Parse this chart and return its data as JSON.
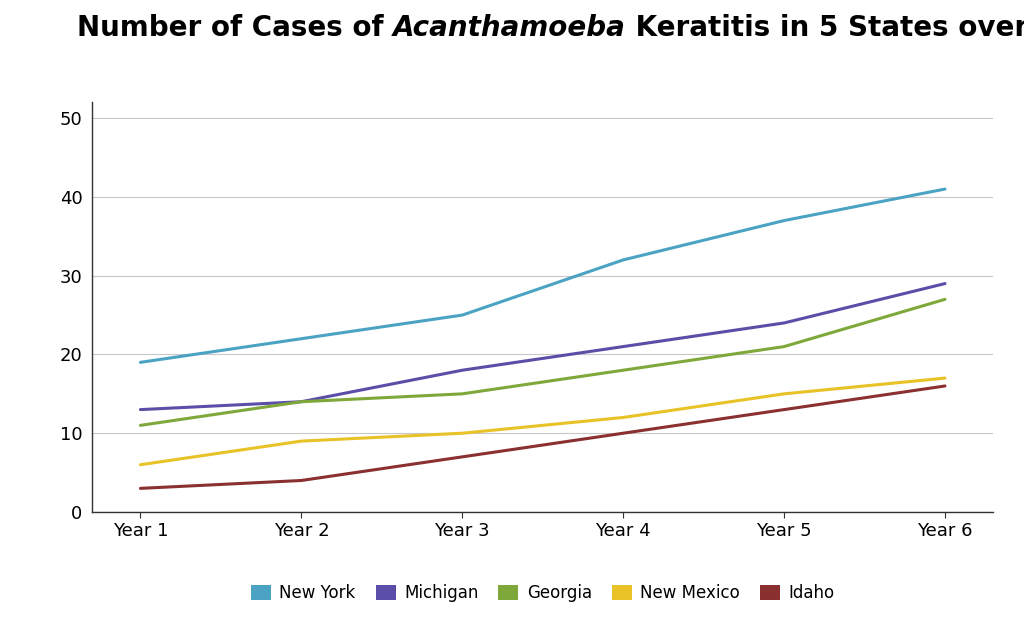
{
  "years": [
    "Year 1",
    "Year 2",
    "Year 3",
    "Year 4",
    "Year 5",
    "Year 6"
  ],
  "series": {
    "New York": [
      19,
      22,
      25,
      32,
      37,
      41
    ],
    "Michigan": [
      13,
      14,
      18,
      21,
      24,
      29
    ],
    "Georgia": [
      11,
      14,
      15,
      18,
      21,
      27
    ],
    "New Mexico": [
      6,
      9,
      10,
      12,
      15,
      17
    ],
    "Idaho": [
      3,
      4,
      7,
      10,
      13,
      16
    ]
  },
  "colors": {
    "New York": "#4BA3C3",
    "Michigan": "#5B4EA8",
    "Georgia": "#7EA83A",
    "New Mexico": "#E8C227",
    "Idaho": "#8B3030"
  },
  "ylim": [
    0,
    52
  ],
  "yticks": [
    0,
    10,
    20,
    30,
    40,
    50
  ],
  "grid_color": "#C8C8C8",
  "background_color": "#FFFFFF",
  "line_width": 2.2,
  "title_fontsize": 20,
  "tick_fontsize": 13,
  "legend_fontsize": 12
}
